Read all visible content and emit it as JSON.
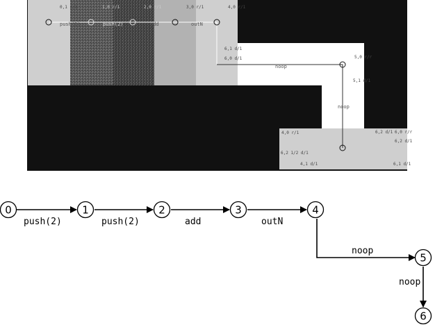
{
  "screenshot": {
    "edge_labels": [
      "push(2)",
      "push(2)",
      "add",
      "outN",
      "noop",
      "noop"
    ],
    "codel_labels": [
      "0,1 r/1",
      "1,0 r/1",
      "2,0 r/1",
      "3,0 r/1",
      "4,0 r/1",
      "5,0 r/r",
      "5,1 d/1",
      "6,2 d/1",
      "6,0 r/r",
      "6,2 d/1",
      "6,1 d/1",
      "4,0 r/1",
      "4,1 d/1",
      "6,2 1/2 d/1",
      "6,1 d/1",
      "6,0 d/1"
    ]
  },
  "graph": {
    "nodes": [
      "0",
      "1",
      "2",
      "3",
      "4",
      "5",
      "6"
    ],
    "edges": [
      {
        "from": "0",
        "to": "1",
        "label": "push(2)"
      },
      {
        "from": "1",
        "to": "2",
        "label": "push(2)"
      },
      {
        "from": "2",
        "to": "3",
        "label": "add"
      },
      {
        "from": "3",
        "to": "4",
        "label": "outN"
      },
      {
        "from": "4",
        "to": "5",
        "label": "noop"
      },
      {
        "from": "5",
        "to": "6",
        "label": "noop"
      }
    ]
  },
  "colors": {
    "background": "#111111",
    "light_gray": "#cfcfcf",
    "medium_gray": "#b2b2b2",
    "dark_noise": "#5a5a5a",
    "darker_noise": "#444444",
    "white": "#ffffff",
    "graph_line": "#000000"
  }
}
